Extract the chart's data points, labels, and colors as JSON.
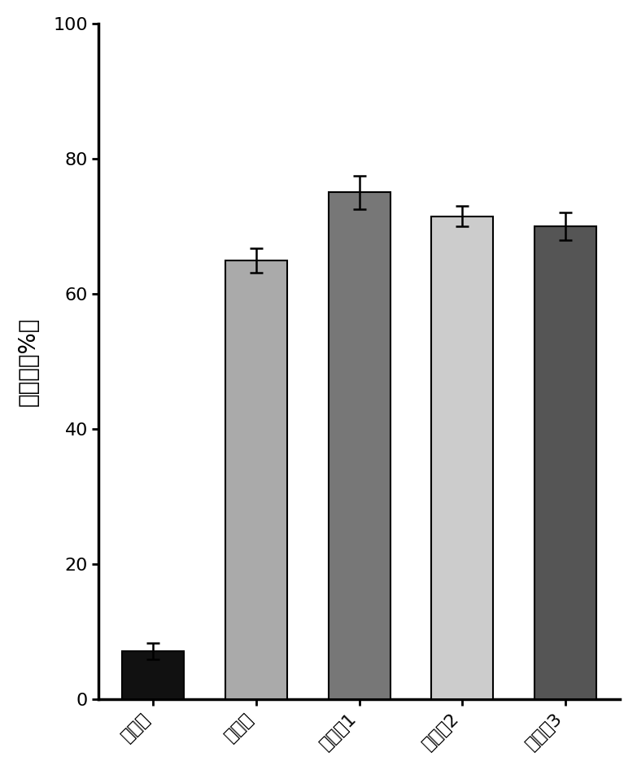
{
  "categories": [
    "空白组",
    "对照组",
    "实施例1",
    "实施例2",
    "实施例3"
  ],
  "values": [
    7.2,
    65.0,
    75.0,
    71.5,
    70.0
  ],
  "errors": [
    1.2,
    1.8,
    2.5,
    1.5,
    2.0
  ],
  "bar_colors": [
    "#111111",
    "#aaaaaa",
    "#777777",
    "#cccccc",
    "#555555"
  ],
  "bar_edgecolors": [
    "#000000",
    "#000000",
    "#000000",
    "#000000",
    "#000000"
  ],
  "ylabel": "抑制率（%）",
  "ylim": [
    0,
    100
  ],
  "yticks": [
    0,
    20,
    40,
    60,
    80,
    100
  ],
  "background_color": "#ffffff",
  "bar_width": 0.6,
  "figsize": [
    7.83,
    9.46
  ],
  "dpi": 100,
  "ylabel_fontsize": 20,
  "tick_fontsize": 16,
  "xtick_rotation": 45
}
